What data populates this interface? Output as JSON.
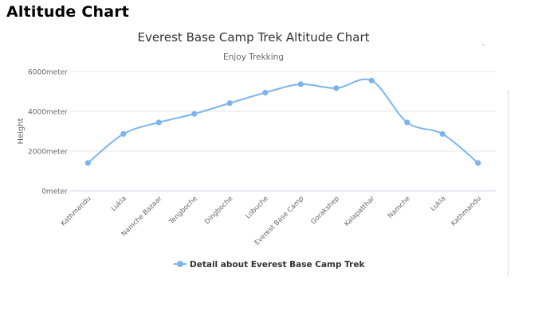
{
  "page": {
    "heading": "Altitude Chart"
  },
  "chart_data": {
    "type": "line",
    "title": "Everest Base Camp Trek Altitude Chart",
    "subtitle": "Enjoy Trekking",
    "ylabel": "Height",
    "xlabel": "",
    "ylim": [
      0,
      6000
    ],
    "yticks": [
      {
        "value": 0,
        "label": "0meter"
      },
      {
        "value": 2000,
        "label": "2000meter"
      },
      {
        "value": 4000,
        "label": "4000meter"
      },
      {
        "value": 6000,
        "label": "6000meter"
      }
    ],
    "grid": true,
    "legend_position": "bottom-center",
    "categories": [
      "Kathmandu",
      "Lukla",
      "Namche Bazaar",
      "Tengboche",
      "Dingboche",
      "Lobuche",
      "Everest Base Camp",
      "Gorakshep",
      "Kalapatthar",
      "Namche",
      "Lukla",
      "Kathmandu"
    ],
    "series": [
      {
        "name": "Detail about Everest Base Camp Trek",
        "color": "#7cb5ec",
        "values": [
          1400,
          2860,
          3440,
          3870,
          4410,
          4940,
          5364,
          5164,
          5545,
          3440,
          2860,
          1400
        ]
      }
    ]
  }
}
